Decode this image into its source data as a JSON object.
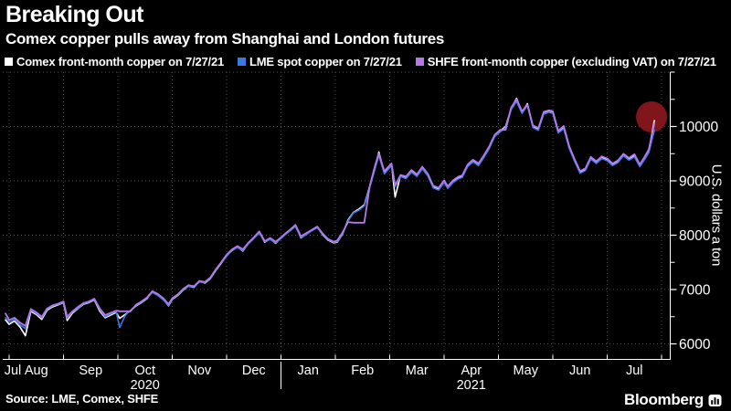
{
  "header": {
    "title": "Breaking Out",
    "subtitle": "Comex copper pulls away from Shanghai and London futures"
  },
  "legend": [
    {
      "label": "Comex front-month copper on 7/27/21",
      "color": "#ffffff"
    },
    {
      "label": "LME spot copper on 7/27/21",
      "color": "#3d77e0"
    },
    {
      "label": "SHFE front-month copper (excluding VAT) on 7/27/21",
      "color": "#b678e8"
    }
  ],
  "footer": {
    "source": "Source: LME, Comex, SHFE",
    "brand": "Bloomberg"
  },
  "chart_data": {
    "type": "line",
    "title": "Breaking Out",
    "subtitle": "Comex copper pulls away from Shanghai and London futures",
    "ylabel": "U.S. dollars a ton",
    "ylim": [
      5725,
      11000
    ],
    "y_ticks": [
      6000,
      7000,
      8000,
      9000,
      10000
    ],
    "y_minor_ticks": [
      6500,
      7500,
      8500,
      9500,
      10500,
      11000
    ],
    "grid": "dotted",
    "grid_color": "#4f4f4f",
    "legend_position": "top",
    "x_range": [
      "2020-07-29",
      "2021-07-27"
    ],
    "x_month_labels": [
      "Jul",
      "Aug",
      "Sep",
      "Oct",
      "Nov",
      "Dec",
      "Jan",
      "Feb",
      "Mar",
      "Apr",
      "May",
      "Jun",
      "Jul"
    ],
    "x_year_labels": [
      {
        "label": "2020",
        "month_index": 3
      },
      {
        "label": "2021",
        "month_index": 9
      }
    ],
    "annotation": {
      "type": "circle",
      "date": "2021-07-27",
      "value": 10110,
      "color": "#87161c"
    },
    "dates": [
      "2020-07-29",
      "2020-08-01",
      "2020-08-04",
      "2020-08-07",
      "2020-08-10",
      "2020-08-13",
      "2020-08-16",
      "2020-08-19",
      "2020-08-22",
      "2020-08-25",
      "2020-08-28",
      "2020-08-31",
      "2020-09-03",
      "2020-09-06",
      "2020-09-09",
      "2020-09-12",
      "2020-09-15",
      "2020-09-18",
      "2020-09-21",
      "2020-09-24",
      "2020-09-27",
      "2020-09-30",
      "2020-10-02",
      "2020-10-05",
      "2020-10-08",
      "2020-10-11",
      "2020-10-14",
      "2020-10-17",
      "2020-10-20",
      "2020-10-23",
      "2020-10-26",
      "2020-10-29",
      "2020-11-01",
      "2020-11-04",
      "2020-11-07",
      "2020-11-10",
      "2020-11-13",
      "2020-11-16",
      "2020-11-19",
      "2020-11-22",
      "2020-11-25",
      "2020-11-28",
      "2020-12-01",
      "2020-12-04",
      "2020-12-07",
      "2020-12-10",
      "2020-12-13",
      "2020-12-16",
      "2020-12-19",
      "2020-12-22",
      "2020-12-25",
      "2020-12-28",
      "2020-12-31",
      "2021-01-03",
      "2021-01-06",
      "2021-01-09",
      "2021-01-12",
      "2021-01-15",
      "2021-01-18",
      "2021-01-21",
      "2021-01-24",
      "2021-01-27",
      "2021-01-30",
      "2021-02-02",
      "2021-02-05",
      "2021-02-08",
      "2021-02-11",
      "2021-02-14",
      "2021-02-17",
      "2021-02-20",
      "2021-02-23",
      "2021-02-25",
      "2021-02-28",
      "2021-03-02",
      "2021-03-04",
      "2021-03-07",
      "2021-03-10",
      "2021-03-13",
      "2021-03-16",
      "2021-03-19",
      "2021-03-22",
      "2021-03-25",
      "2021-03-28",
      "2021-03-31",
      "2021-04-03",
      "2021-04-06",
      "2021-04-09",
      "2021-04-11",
      "2021-04-14",
      "2021-04-17",
      "2021-04-20",
      "2021-04-23",
      "2021-04-26",
      "2021-04-29",
      "2021-05-02",
      "2021-05-05",
      "2021-05-08",
      "2021-05-11",
      "2021-05-14",
      "2021-05-17",
      "2021-05-20",
      "2021-05-23",
      "2021-05-26",
      "2021-05-29",
      "2021-06-01",
      "2021-06-04",
      "2021-06-07",
      "2021-06-10",
      "2021-06-13",
      "2021-06-16",
      "2021-06-19",
      "2021-06-22",
      "2021-06-25",
      "2021-06-28",
      "2021-07-01",
      "2021-07-04",
      "2021-07-07",
      "2021-07-10",
      "2021-07-13",
      "2021-07-16",
      "2021-07-19",
      "2021-07-22",
      "2021-07-24",
      "2021-07-27"
    ],
    "series": [
      {
        "name": "Comex front-month copper on 7/27/21",
        "color": "#ffffff",
        "width": 1.6,
        "values": [
          6440,
          6360,
          6420,
          6310,
          6150,
          6600,
          6540,
          6450,
          6620,
          6680,
          6720,
          6760,
          6430,
          6570,
          6650,
          6730,
          6760,
          6810,
          6600,
          6480,
          6530,
          6580,
          6470,
          6540,
          6610,
          6700,
          6760,
          6830,
          6960,
          6900,
          6820,
          6700,
          6820,
          6890,
          6990,
          7060,
          7040,
          7150,
          7120,
          7200,
          7350,
          7480,
          7620,
          7720,
          7780,
          7710,
          7850,
          7950,
          8060,
          7870,
          7930,
          7850,
          7950,
          8010,
          8090,
          8180,
          7950,
          8020,
          8090,
          8150,
          8010,
          7910,
          7860,
          7870,
          8020,
          8280,
          8420,
          8480,
          8560,
          8900,
          9250,
          9530,
          9150,
          9300,
          8700,
          9100,
          9060,
          9180,
          9100,
          9240,
          9110,
          8890,
          8850,
          8990,
          8880,
          8990,
          9060,
          9080,
          9280,
          9370,
          9300,
          9450,
          9620,
          9830,
          9920,
          10000,
          10330,
          10520,
          10260,
          10420,
          10000,
          9950,
          10260,
          10290,
          10270,
          9900,
          9990,
          9620,
          9380,
          9160,
          9210,
          9420,
          9340,
          9430,
          9390,
          9300,
          9360,
          9480,
          9400,
          9470,
          9280,
          9440,
          9560,
          10110
        ]
      },
      {
        "name": "LME spot copper on 7/27/21",
        "color": "#3d77e0",
        "width": 1.6,
        "values": [
          6480,
          6400,
          6450,
          6350,
          6280,
          6620,
          6560,
          6480,
          6640,
          6700,
          6730,
          6770,
          6470,
          6590,
          6660,
          6740,
          6770,
          6820,
          6630,
          6500,
          6550,
          6600,
          6300,
          6520,
          6620,
          6710,
          6770,
          6840,
          6950,
          6890,
          6810,
          6710,
          6830,
          6900,
          7000,
          7060,
          7050,
          7140,
          7130,
          7210,
          7360,
          7490,
          7610,
          7730,
          7770,
          7720,
          7840,
          7940,
          8040,
          7880,
          7920,
          7860,
          7940,
          8000,
          8080,
          8160,
          7960,
          8010,
          8080,
          8140,
          8020,
          7920,
          7870,
          7880,
          8030,
          8260,
          8410,
          8460,
          8540,
          8880,
          9230,
          9470,
          9130,
          9280,
          8890,
          9080,
          9040,
          9160,
          9080,
          9220,
          9090,
          8870,
          8830,
          8970,
          8860,
          8970,
          9040,
          9060,
          9260,
          9350,
          9280,
          9430,
          9600,
          9820,
          9900,
          9980,
          10310,
          10460,
          10240,
          10390,
          9980,
          9930,
          10230,
          10260,
          10240,
          9880,
          9960,
          9600,
          9360,
          9140,
          9190,
          9400,
          9320,
          9410,
          9370,
          9280,
          9340,
          9460,
          9380,
          9440,
          9260,
          9410,
          9520,
          9930
        ]
      },
      {
        "name": "SHFE front-month copper (excluding VAT) on 7/27/21",
        "color": "#b678e8",
        "width": 1.8,
        "values": [
          6560,
          6440,
          6480,
          6390,
          6330,
          6640,
          6580,
          6500,
          6650,
          6710,
          6740,
          6780,
          6500,
          6600,
          6680,
          6750,
          6780,
          6830,
          6650,
          6530,
          6570,
          6610,
          6600,
          6600,
          6600,
          6720,
          6780,
          6850,
          6970,
          6920,
          6840,
          6730,
          6840,
          6910,
          7010,
          7080,
          7060,
          7160,
          7140,
          7220,
          7370,
          7500,
          7640,
          7740,
          7800,
          7740,
          7860,
          7960,
          8070,
          7890,
          7950,
          7880,
          7960,
          8020,
          8100,
          8190,
          7980,
          8040,
          8100,
          8160,
          8030,
          7930,
          7880,
          7900,
          8050,
          8240,
          8230,
          8230,
          8230,
          8910,
          9290,
          9500,
          9180,
          9320,
          8920,
          9110,
          9080,
          9200,
          9120,
          9260,
          9130,
          8910,
          8870,
          9010,
          8900,
          9010,
          9080,
          9100,
          9300,
          9390,
          9320,
          9470,
          9640,
          9850,
          9940,
          9940,
          10350,
          10500,
          10280,
          10400,
          10020,
          9970,
          10270,
          10300,
          10280,
          9920,
          10010,
          9640,
          9400,
          9180,
          9230,
          9440,
          9360,
          9450,
          9410,
          9320,
          9380,
          9500,
          9420,
          9490,
          9300,
          9460,
          9580,
          10050
        ]
      }
    ]
  }
}
